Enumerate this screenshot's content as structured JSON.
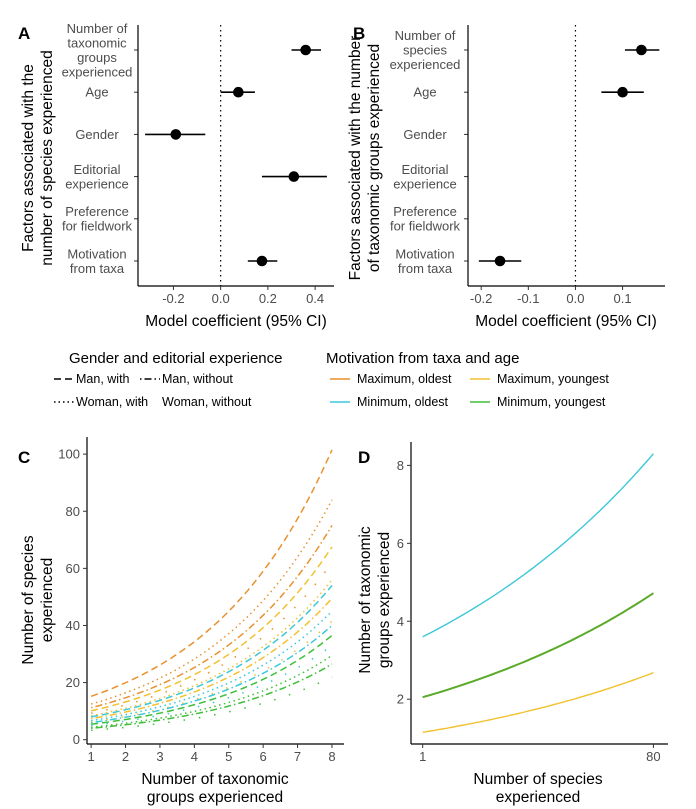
{
  "chart_data": [
    {
      "panel": "A",
      "type": "scatter",
      "subtype": "coefficient-plot",
      "title": "",
      "xlabel": "Model coefficient (95% CI)",
      "ylabel": "Factors associated with the number of species experienced",
      "xlim": [
        -0.35,
        0.48
      ],
      "xticks": [
        "-0.2",
        "0.0",
        "0.2",
        "0.4"
      ],
      "xtick_values": [
        -0.2,
        0.0,
        0.2,
        0.4
      ],
      "reference_line": 0.0,
      "categories": [
        "Number of taxonomic groups experienced",
        "Age",
        "Gender",
        "Editorial experience",
        "Preference for fieldwork",
        "Motivation from taxa"
      ],
      "category_lines": [
        [
          "Number of",
          "taxonomic",
          "groups",
          "experienced"
        ],
        [
          "Age"
        ],
        [
          "Gender"
        ],
        [
          "Editorial",
          "experience"
        ],
        [
          "Preference",
          "for fieldwork"
        ],
        [
          "Motivation",
          "from taxa"
        ]
      ],
      "estimates": [
        0.36,
        0.075,
        -0.19,
        0.31,
        null,
        0.175
      ],
      "ci_low": [
        0.3,
        0.0,
        -0.32,
        0.175,
        null,
        0.115
      ],
      "ci_high": [
        0.425,
        0.145,
        -0.065,
        0.45,
        null,
        0.24
      ]
    },
    {
      "panel": "B",
      "type": "scatter",
      "subtype": "coefficient-plot",
      "title": "",
      "xlabel": "Model coefficient (95% CI)",
      "ylabel": "Factors associated with the number of taxonomic groups experienced",
      "xlim": [
        -0.228,
        0.19
      ],
      "xticks": [
        "-0.2",
        "-0.1",
        "0.0",
        "0.1"
      ],
      "xtick_values": [
        -0.2,
        -0.1,
        0.0,
        0.1
      ],
      "reference_line": 0.0,
      "categories": [
        "Number of species experienced",
        "Age",
        "Gender",
        "Editorial experience",
        "Preference for fieldwork",
        "Motivation from taxa"
      ],
      "category_lines": [
        [
          "Number of",
          "species",
          "experienced"
        ],
        [
          "Age"
        ],
        [
          "Gender"
        ],
        [
          "Editorial",
          "experience"
        ],
        [
          "Preference",
          "for fieldwork"
        ],
        [
          "Motivation",
          "from taxa"
        ]
      ],
      "estimates": [
        0.14,
        0.1,
        null,
        null,
        null,
        -0.16
      ],
      "ci_low": [
        0.105,
        0.055,
        null,
        null,
        null,
        -0.205
      ],
      "ci_high": [
        0.178,
        0.145,
        null,
        null,
        null,
        -0.115
      ]
    },
    {
      "panel": "C",
      "type": "line",
      "title": "",
      "xlabel": "Number of taxonomic groups experienced",
      "ylabel": "Number of species experienced",
      "xlim": [
        0.88,
        8.35
      ],
      "ylim": [
        -1.5,
        106
      ],
      "xticks": [
        "1",
        "2",
        "3",
        "4",
        "5",
        "6",
        "7",
        "8"
      ],
      "xtick_values": [
        1,
        2,
        3,
        4,
        5,
        6,
        7,
        8
      ],
      "yticks": [
        "0",
        "20",
        "40",
        "60",
        "80",
        "100"
      ],
      "ytick_values": [
        0,
        20,
        40,
        60,
        80,
        100
      ],
      "x": [
        1,
        8
      ],
      "series": [
        {
          "name": "Maximum, oldest / Man, with",
          "color_group": "Maximum, oldest",
          "linetype": "Man, with",
          "values": [
            15.2,
            101.5
          ]
        },
        {
          "name": "Maximum, oldest / Woman, with",
          "color_group": "Maximum, oldest",
          "linetype": "Woman, with",
          "values": [
            12.5,
            84
          ]
        },
        {
          "name": "Maximum, oldest / Man, without",
          "color_group": "Maximum, oldest",
          "linetype": "Man, without",
          "values": [
            11.2,
            75
          ]
        },
        {
          "name": "Maximum, youngest / Man, with",
          "color_group": "Maximum, youngest",
          "linetype": "Man, with",
          "values": [
            10.1,
            67.5
          ]
        },
        {
          "name": "Maximum, oldest / Woman, without",
          "color_group": "Maximum, oldest",
          "linetype": "Woman, without",
          "values": [
            9.3,
            62
          ]
        },
        {
          "name": "Maximum, youngest / Woman, with",
          "color_group": "Maximum, youngest",
          "linetype": "Woman, with",
          "values": [
            8.4,
            56
          ]
        },
        {
          "name": "Minimum, oldest / Man, with",
          "color_group": "Minimum, oldest",
          "linetype": "Man, with",
          "values": [
            8.0,
            54
          ]
        },
        {
          "name": "Maximum, youngest / Man, without",
          "color_group": "Maximum, youngest",
          "linetype": "Man, without",
          "values": [
            7.4,
            49.5
          ]
        },
        {
          "name": "Minimum, oldest / Woman, with",
          "color_group": "Minimum, oldest",
          "linetype": "Woman, with",
          "values": [
            6.7,
            45
          ]
        },
        {
          "name": "Maximum, youngest / Woman, without",
          "color_group": "Maximum, youngest",
          "linetype": "Woman, without",
          "values": [
            6.2,
            41.5
          ]
        },
        {
          "name": "Minimum, oldest / Man, without",
          "color_group": "Minimum, oldest",
          "linetype": "Man, without",
          "values": [
            6.0,
            40
          ]
        },
        {
          "name": "Minimum, youngest / Man, with",
          "color_group": "Minimum, youngest",
          "linetype": "Man, with",
          "values": [
            5.4,
            36.5
          ]
        },
        {
          "name": "Minimum, oldest / Woman, without",
          "color_group": "Minimum, oldest",
          "linetype": "Woman, without",
          "values": [
            5.0,
            33
          ]
        },
        {
          "name": "Minimum, youngest / Woman, with",
          "color_group": "Minimum, youngest",
          "linetype": "Woman, with",
          "values": [
            4.4,
            29.5
          ]
        },
        {
          "name": "Minimum, youngest / Man, without",
          "color_group": "Minimum, youngest",
          "linetype": "Man, without",
          "values": [
            4.0,
            26.5
          ]
        },
        {
          "name": "Minimum, youngest / Woman, without",
          "color_group": "Minimum, youngest",
          "linetype": "Woman, without",
          "values": [
            3.3,
            22
          ]
        }
      ]
    },
    {
      "panel": "D",
      "type": "line",
      "title": "",
      "xlabel": "Number of species experienced",
      "ylabel": "Number of taxonomic groups experienced",
      "xlim": [
        -3,
        85
      ],
      "ylim": [
        0.85,
        8.6
      ],
      "xticks": [
        "1",
        "80"
      ],
      "xtick_values": [
        1,
        80
      ],
      "yticks": [
        "2",
        "4",
        "6",
        "8"
      ],
      "ytick_values": [
        2,
        4,
        6,
        8
      ],
      "x": [
        1,
        80
      ],
      "series": [
        {
          "name": "Minimum, oldest",
          "color_group": "Minimum, oldest",
          "values": [
            3.6,
            8.3
          ]
        },
        {
          "name": "Maximum, oldest",
          "color_group": "Maximum, oldest",
          "values": [
            2.05,
            4.72
          ]
        },
        {
          "name": "Minimum, youngest",
          "color_group": "Minimum, youngest",
          "values": [
            2.05,
            4.72
          ]
        },
        {
          "name": "Maximum, youngest",
          "color_group": "Maximum, youngest",
          "values": [
            1.15,
            2.68
          ]
        }
      ]
    }
  ],
  "panels": {
    "a_letter": "A",
    "b_letter": "B",
    "c_letter": "C",
    "d_letter": "D"
  },
  "labels": {
    "a_ylabel_line1": "Factors associated with the",
    "a_ylabel_line2": "number of species experienced",
    "b_ylabel_line1": "Factors associated with the number",
    "b_ylabel_line2": "of taxonomic groups experienced",
    "ab_xlabel": "Model coefficient (95% CI)",
    "c_xlabel_line1": "Number of taxonomic",
    "c_xlabel_line2": "groups experienced",
    "c_ylabel_line1": "Number of species",
    "c_ylabel_line2": "experienced",
    "d_xlabel_line1": "Number of species",
    "d_xlabel_line2": "experienced",
    "d_ylabel_line1": "Number of taxonomic",
    "d_ylabel_line2": "groups experienced"
  },
  "legend": {
    "linetype_title": "Gender and editorial experience",
    "linetype_items": [
      {
        "label": "Man, with",
        "linetype": "dashed"
      },
      {
        "label": "Man, without",
        "linetype": "dotdash"
      },
      {
        "label": "Woman, with",
        "linetype": "dotted"
      },
      {
        "label": "Woman, without",
        "linetype": "sparse-dot"
      }
    ],
    "color_title": "Motivation from taxa and age",
    "color_items": [
      {
        "label": "Maximum, oldest",
        "color": "#e8912f"
      },
      {
        "label": "Maximum, youngest",
        "color": "#f2c12e"
      },
      {
        "label": "Minimum, oldest",
        "color": "#3cc8d8"
      },
      {
        "label": "Minimum, youngest",
        "color": "#3fbf3a"
      }
    ]
  },
  "colors": {
    "Maximum, oldest": "#e8912f",
    "Maximum, youngest": "#f2c12e",
    "Minimum, oldest": "#3cc8d8",
    "Minimum, youngest": "#3fbf3a",
    "d_green": "#5aab2a"
  }
}
